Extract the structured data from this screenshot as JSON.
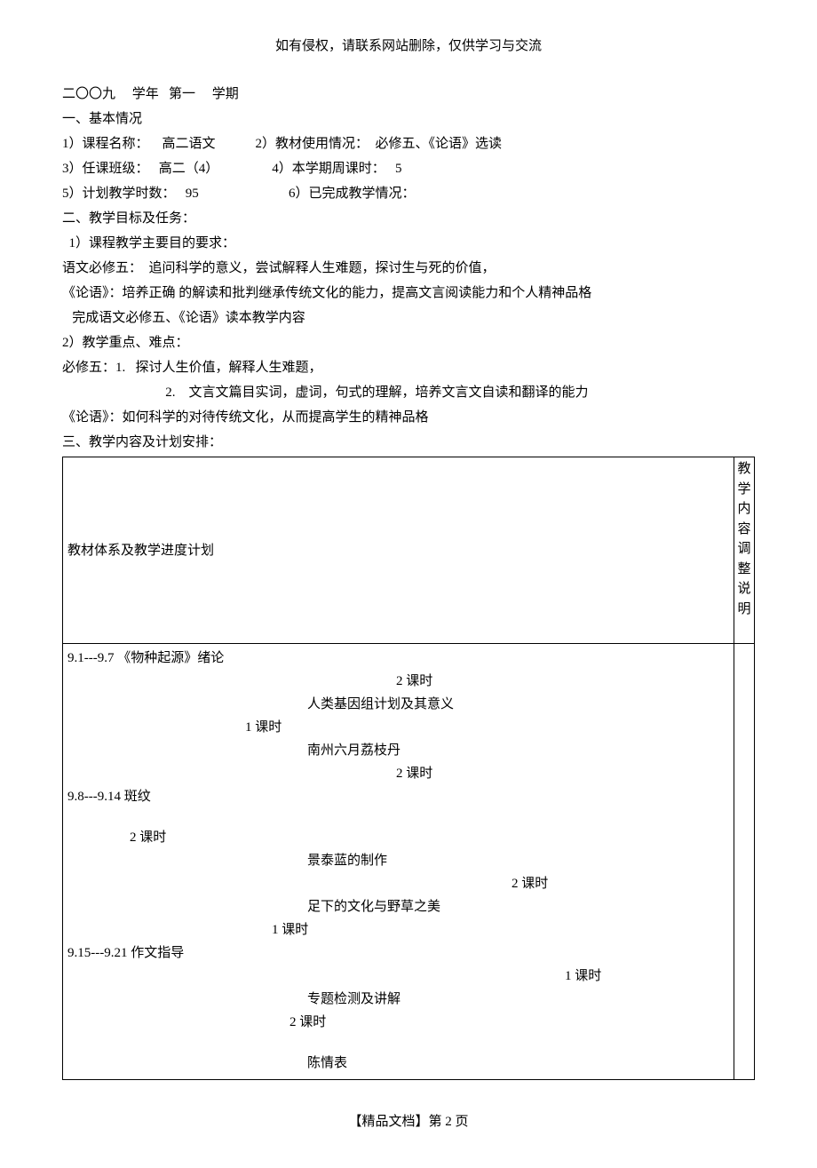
{
  "header_note": "如有侵权，请联系网站删除，仅供学习与交流",
  "title_line": "二〇〇九     学年   第一     学期",
  "basic_info_header": "一、基本情况",
  "info_1": "1）课程名称：    高二语文            2）教材使用情况：  必修五、《论语》选读",
  "info_2": "3）任课班级：   高二（4）                4）本学期周课时：   5",
  "info_3": "5）计划教学时数：   95                           6）已完成教学情况：",
  "goals_header": "二、教学目标及任务：",
  "goals_1": "  1）课程教学主要目的要求：",
  "goals_2": "语文必修五：  追问科学的意义，尝试解释人生难题，探讨生与死的价值，",
  "goals_3": "《论语》：培养正确 的解读和批判继承传统文化的能力，提高文言阅读能力和个人精神品格",
  "goals_4": "   完成语文必修五、《论语》读本教学内容",
  "goals_5": "2）教学重点、难点：",
  "goals_6": "必修五：1.   探讨人生价值，解释人生难题，",
  "goals_7": "                               2.    文言文篇目实词，虚词，句式的理解，培养文言文自读和翻译的能力",
  "goals_8": "《论语》：如何科学的对待传统文化，从而提高学生的精神品格",
  "plan_header": "三、教学内容及计划安排：",
  "table": {
    "left_header": "教材体系及教学进度计划",
    "right_header": "教学内容调整说明",
    "rows": [
      {
        "text": "9.1---9.7        《物种起源》绪论",
        "class": ""
      },
      {
        "text": "2 课时",
        "class": "right-offset2"
      },
      {
        "text": "人类基因组计划及其意义",
        "class": "right-offset"
      },
      {
        "text": "1 课时",
        "class": "center-left",
        "style": "padding-left: 200px;"
      },
      {
        "text": "南州六月荔枝丹",
        "class": "right-offset"
      },
      {
        "text": "2 课时",
        "class": "right-offset2"
      },
      {
        "text": "9.8---9.14       斑纹",
        "class": ""
      },
      {
        "text": "",
        "class": "spacer-row"
      },
      {
        "text": "2 课时",
        "class": "",
        "style": "padding-left: 70px;"
      },
      {
        "text": "景泰蓝的制作",
        "class": "right-offset"
      },
      {
        "text": "2 课时",
        "class": "right-offset3"
      },
      {
        "text": "足下的文化与野草之美",
        "class": "right-offset"
      },
      {
        "text": "1 课时",
        "class": "",
        "style": "padding-left: 230px;"
      },
      {
        "text": "9.15---9.21     作文指导",
        "class": ""
      },
      {
        "text": "1 课时",
        "class": "right-offset4"
      },
      {
        "text": "专题检测及讲解",
        "class": "right-offset"
      },
      {
        "text": "2 课时",
        "class": "",
        "style": "padding-left: 250px;"
      },
      {
        "text": "",
        "class": "spacer-row"
      },
      {
        "text": "陈情表",
        "class": "right-offset"
      }
    ]
  },
  "footer": "【精品文档】第 2 页"
}
